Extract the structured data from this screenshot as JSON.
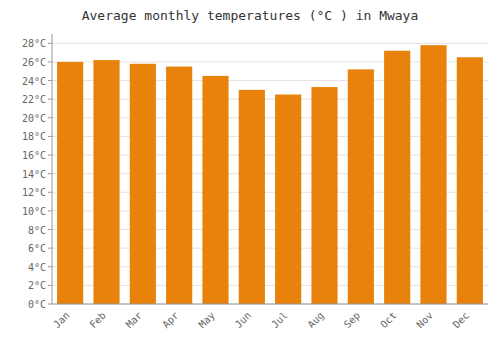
{
  "chart_data": {
    "type": "bar",
    "title": "Average monthly temperatures (°C ) in Mwaya",
    "categories": [
      "Jan",
      "Feb",
      "Mar",
      "Apr",
      "May",
      "Jun",
      "Jul",
      "Aug",
      "Sep",
      "Oct",
      "Nov",
      "Dec"
    ],
    "values": [
      26.0,
      26.2,
      25.8,
      25.5,
      24.5,
      23.0,
      22.5,
      23.3,
      25.2,
      27.2,
      27.8,
      26.5
    ],
    "color": "#E8820A",
    "ylim": [
      0,
      29
    ],
    "yticks": [
      {
        "value": 0,
        "label": "0°C"
      },
      {
        "value": 2,
        "label": "2°C"
      },
      {
        "value": 4,
        "label": "4°C"
      },
      {
        "value": 6,
        "label": "6°C"
      },
      {
        "value": 8,
        "label": "8°C"
      },
      {
        "value": 10,
        "label": "10°C"
      },
      {
        "value": 12,
        "label": "12°C"
      },
      {
        "value": 14,
        "label": "14°C"
      },
      {
        "value": 16,
        "label": "16°C"
      },
      {
        "value": 18,
        "label": "18°C"
      },
      {
        "value": 20,
        "label": "20°C"
      },
      {
        "value": 22,
        "label": "22°C"
      },
      {
        "value": 24,
        "label": "24°C"
      },
      {
        "value": 26,
        "label": "26°C"
      },
      {
        "value": 28,
        "label": "28°C"
      }
    ],
    "grid": true
  }
}
